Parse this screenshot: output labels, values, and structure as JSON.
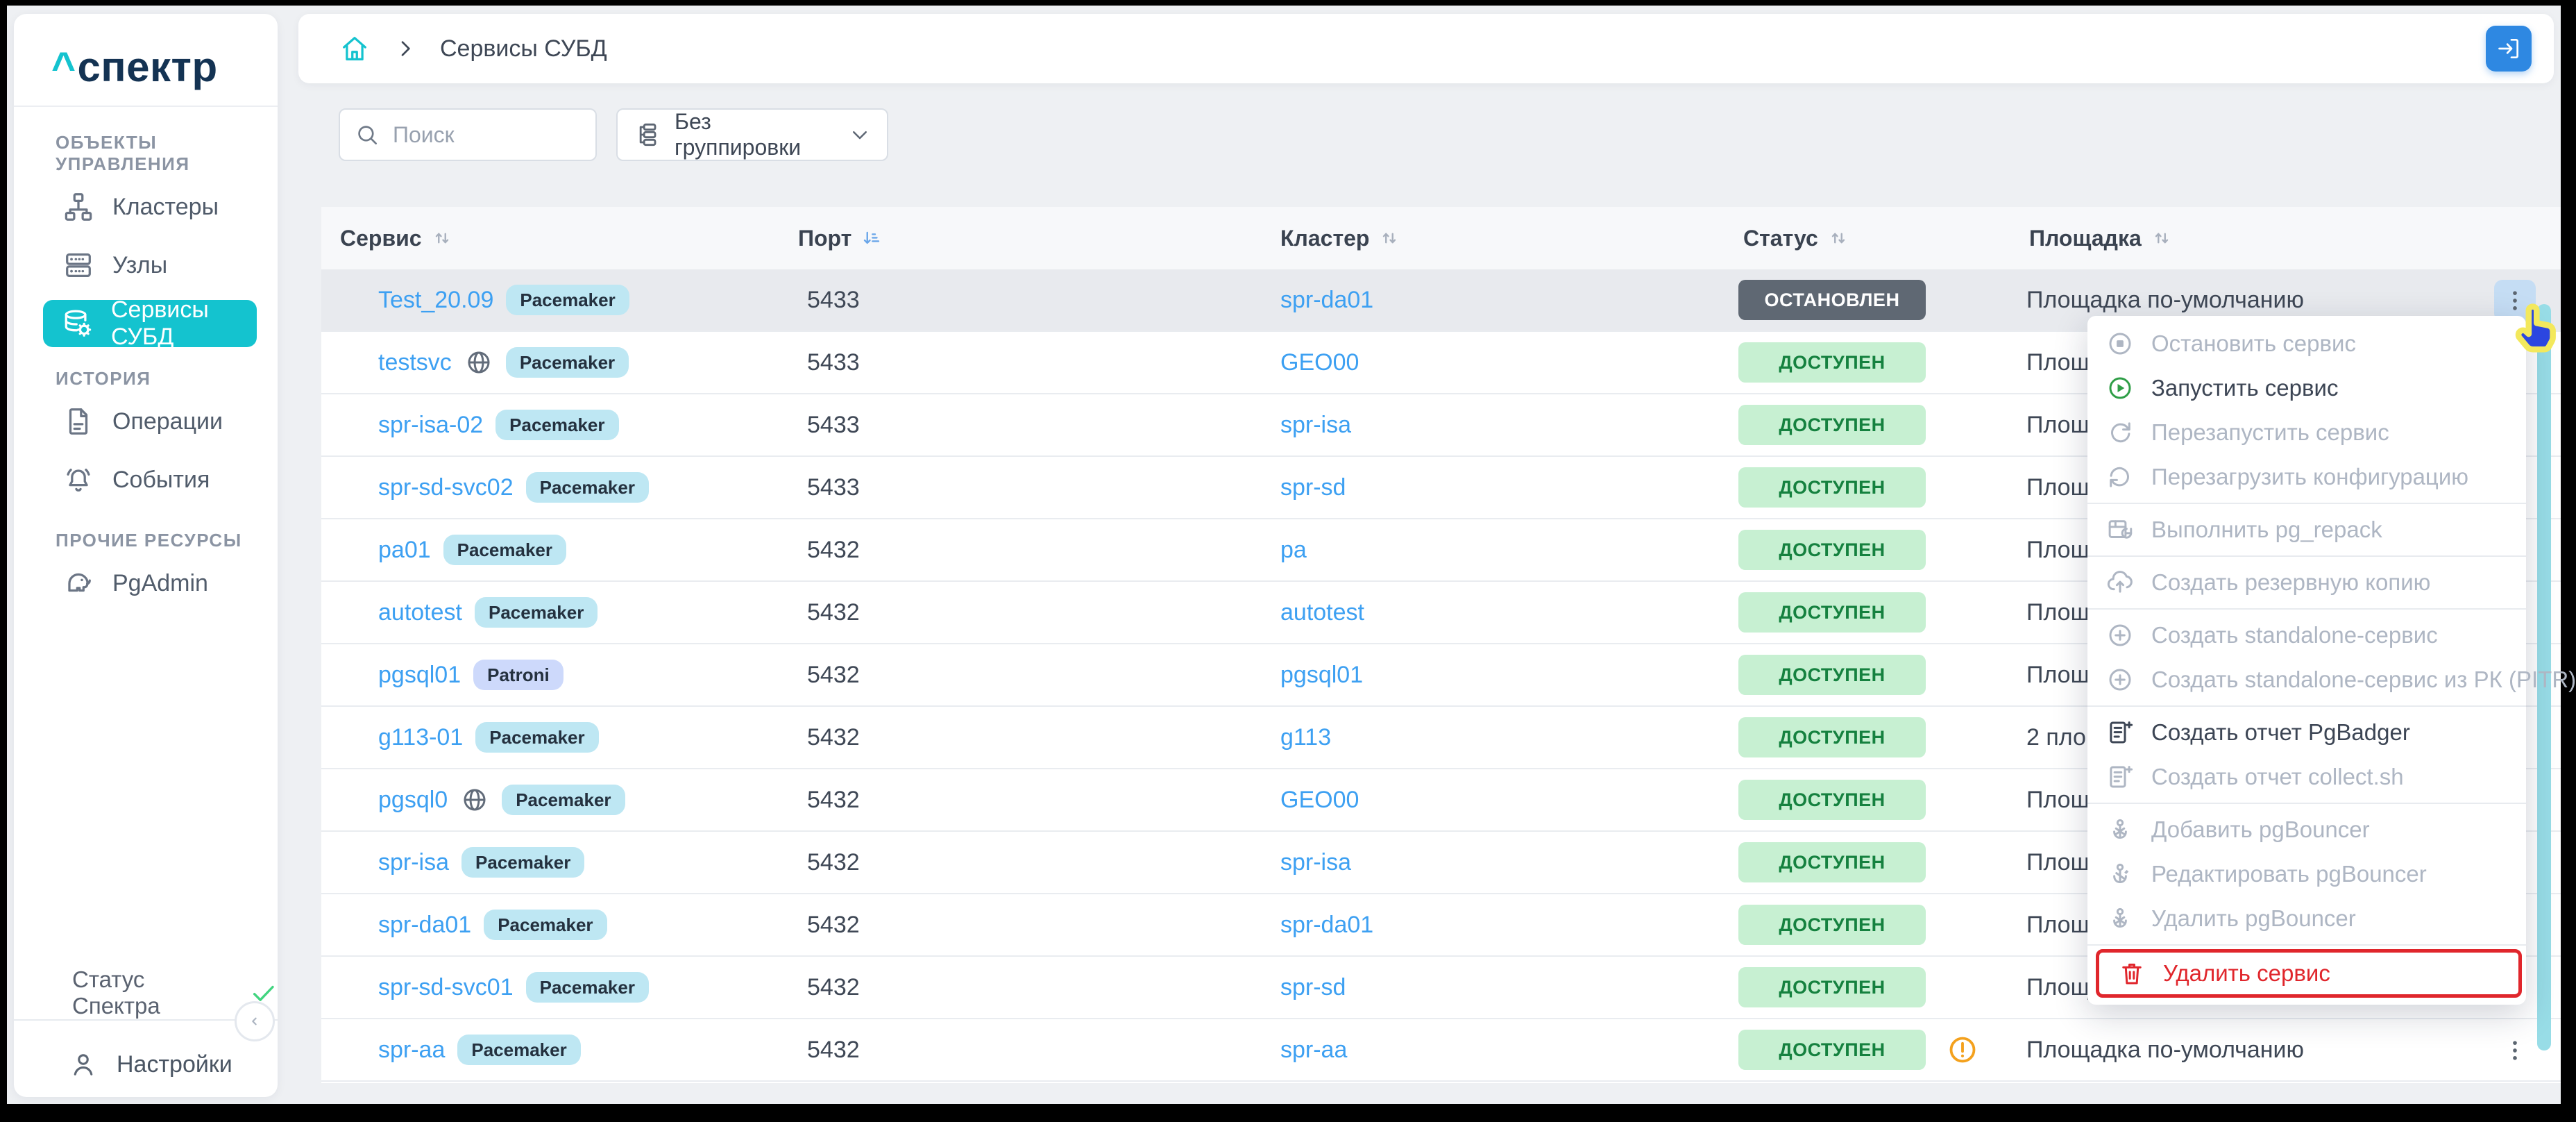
{
  "colors": {
    "accent_teal": "#14c3cf",
    "link_blue": "#3da0f2",
    "button_blue": "#2e88e2",
    "status_ok_bg": "#c7f0d2",
    "status_ok_text": "#15813f",
    "status_ok_icon": "#41d47f",
    "status_stopped_bg": "#5f6873",
    "danger_red": "#e0262c",
    "warning_orange": "#f4a11d",
    "scrollbar_teal": "#98dde7",
    "badge_pacemaker_bg": "#bee7f3",
    "badge_patroni_bg": "#cdd9fb",
    "sort_active": "#6aa6e9"
  },
  "sidebar": {
    "logo": {
      "caret": "^",
      "text": "спектр"
    },
    "sections": [
      {
        "label": "ОБЪЕКТЫ УПРАВЛЕНИЯ",
        "items": [
          {
            "label": "Кластеры",
            "icon": "clusters-icon",
            "active": false
          },
          {
            "label": "Узлы",
            "icon": "nodes-icon",
            "active": false
          },
          {
            "label": "Сервисы СУБД",
            "icon": "db-services-icon",
            "active": true
          }
        ]
      },
      {
        "label": "ИСТОРИЯ",
        "items": [
          {
            "label": "Операции",
            "icon": "operations-icon",
            "active": false
          },
          {
            "label": "События",
            "icon": "events-icon",
            "active": false
          }
        ]
      },
      {
        "label": "ПРОЧИЕ РЕСУРСЫ",
        "items": [
          {
            "label": "PgAdmin",
            "icon": "pgadmin-icon",
            "active": false
          }
        ]
      }
    ],
    "status": {
      "label": "Статус Спектра",
      "state": "ok"
    },
    "settings_label": "Настройки"
  },
  "topbar": {
    "breadcrumb_label": "Сервисы СУБД"
  },
  "controls": {
    "search_placeholder": "Поиск",
    "grouping_value": "Без группировки"
  },
  "table": {
    "columns": [
      {
        "label": "Сервис",
        "sort": "sort-icon",
        "sorted": false
      },
      {
        "label": "Порт",
        "sort": "sort-desc-icon",
        "sorted": true
      },
      {
        "label": "Кластер",
        "sort": "sort-icon",
        "sorted": false
      },
      {
        "label": "Статус",
        "sort": "sort-icon",
        "sorted": false
      },
      {
        "label": "Площадка",
        "sort": "sort-icon",
        "sorted": false
      }
    ],
    "rows": [
      {
        "service": "Test_20.09",
        "badge": "Pacemaker",
        "geo": false,
        "port": "5433",
        "cluster": "spr-da01",
        "status": "ОСТАНОВЛЕН",
        "status_variant": "stopped",
        "site": "Площадка по-умолчанию",
        "warning": false,
        "highlighted": true,
        "actions": "active"
      },
      {
        "service": "testsvc",
        "badge": "Pacemaker",
        "geo": true,
        "port": "5433",
        "cluster": "GEO00",
        "status": "ДОСТУПЕН",
        "status_variant": "ok",
        "site": "Площадка по-умолчанию",
        "warning": false,
        "highlighted": false,
        "actions": "dots"
      },
      {
        "service": "spr-isa-02",
        "badge": "Pacemaker",
        "geo": false,
        "port": "5433",
        "cluster": "spr-isa",
        "status": "ДОСТУПЕН",
        "status_variant": "ok",
        "site": "Площадка по-умолчанию",
        "warning": false,
        "highlighted": false,
        "actions": "dots"
      },
      {
        "service": "spr-sd-svc02",
        "badge": "Pacemaker",
        "geo": false,
        "port": "5433",
        "cluster": "spr-sd",
        "status": "ДОСТУПЕН",
        "status_variant": "ok",
        "site": "Площадка по-умолчанию",
        "warning": false,
        "highlighted": false,
        "actions": "dots"
      },
      {
        "service": "pa01",
        "badge": "Pacemaker",
        "geo": false,
        "port": "5432",
        "cluster": "pa",
        "status": "ДОСТУПЕН",
        "status_variant": "ok",
        "site": "Площадка по-умолчанию",
        "warning": false,
        "highlighted": false,
        "actions": "dots"
      },
      {
        "service": "autotest",
        "badge": "Pacemaker",
        "geo": false,
        "port": "5432",
        "cluster": "autotest",
        "status": "ДОСТУПЕН",
        "status_variant": "ok",
        "site": "Площадка по-умолчанию",
        "warning": false,
        "highlighted": false,
        "actions": "dots"
      },
      {
        "service": "pgsql01",
        "badge": "Patroni",
        "geo": false,
        "port": "5432",
        "cluster": "pgsql01",
        "status": "ДОСТУПЕН",
        "status_variant": "ok",
        "site": "Площадка по-умолчанию",
        "warning": false,
        "highlighted": false,
        "actions": "dots"
      },
      {
        "service": "g113-01",
        "badge": "Pacemaker",
        "geo": false,
        "port": "5432",
        "cluster": "g113",
        "status": "ДОСТУПЕН",
        "status_variant": "ok",
        "site": "2 площадки",
        "warning": false,
        "highlighted": false,
        "actions": "dots"
      },
      {
        "service": "pgsql0",
        "badge": "Pacemaker",
        "geo": true,
        "port": "5432",
        "cluster": "GEO00",
        "status": "ДОСТУПЕН",
        "status_variant": "ok",
        "site": "Площадка по-умолчанию",
        "warning": false,
        "highlighted": false,
        "actions": "dots"
      },
      {
        "service": "spr-isa",
        "badge": "Pacemaker",
        "geo": false,
        "port": "5432",
        "cluster": "spr-isa",
        "status": "ДОСТУПЕН",
        "status_variant": "ok",
        "site": "Площадка по-умолчанию",
        "warning": false,
        "highlighted": false,
        "actions": "dots"
      },
      {
        "service": "spr-da01",
        "badge": "Pacemaker",
        "geo": false,
        "port": "5432",
        "cluster": "spr-da01",
        "status": "ДОСТУПЕН",
        "status_variant": "ok",
        "site": "Площадка по-умолчанию",
        "warning": false,
        "highlighted": false,
        "actions": "dots"
      },
      {
        "service": "spr-sd-svc01",
        "badge": "Pacemaker",
        "geo": false,
        "port": "5432",
        "cluster": "spr-sd",
        "status": "ДОСТУПЕН",
        "status_variant": "ok",
        "site": "Площадка по-умолчанию",
        "warning": false,
        "highlighted": false,
        "actions": "dots"
      },
      {
        "service": "spr-aa",
        "badge": "Pacemaker",
        "geo": false,
        "port": "5432",
        "cluster": "spr-aa",
        "status": "ДОСТУПЕН",
        "status_variant": "ok",
        "site": "Площадка по-умолчанию",
        "warning": true,
        "highlighted": false,
        "actions": "dots"
      }
    ]
  },
  "context_menu": {
    "groups": [
      {
        "items": [
          {
            "label": "Остановить сервис",
            "icon": "stop-icon",
            "enabled": false,
            "danger": false,
            "highlighted": false
          },
          {
            "label": "Запустить сервис",
            "icon": "play-icon",
            "enabled": true,
            "danger": false,
            "highlighted": false,
            "icon_color": "#2f9e47"
          },
          {
            "label": "Перезапустить сервис",
            "icon": "restart-icon",
            "enabled": false,
            "danger": false,
            "highlighted": false
          },
          {
            "label": "Перезагрузить конфигурацию",
            "icon": "reload-icon",
            "enabled": false,
            "danger": false,
            "highlighted": false
          }
        ]
      },
      {
        "items": [
          {
            "label": "Выполнить pg_repack",
            "icon": "repack-icon",
            "enabled": false,
            "danger": false,
            "highlighted": false
          }
        ]
      },
      {
        "items": [
          {
            "label": "Создать резервную копию",
            "icon": "backup-icon",
            "enabled": false,
            "danger": false,
            "highlighted": false
          }
        ]
      },
      {
        "items": [
          {
            "label": "Создать standalone-сервис",
            "icon": "plus-circle-icon",
            "enabled": false,
            "danger": false,
            "highlighted": false
          },
          {
            "label": "Создать standalone-сервис из РК (PITR)",
            "icon": "plus-circle-icon",
            "enabled": false,
            "danger": false,
            "highlighted": false
          }
        ]
      },
      {
        "items": [
          {
            "label": "Создать отчет PgBadger",
            "icon": "report-icon",
            "enabled": true,
            "danger": false,
            "highlighted": false
          },
          {
            "label": "Создать отчет collect.sh",
            "icon": "report-icon",
            "enabled": false,
            "danger": false,
            "highlighted": false
          }
        ]
      },
      {
        "items": [
          {
            "label": "Добавить pgBouncer",
            "icon": "pgbouncer-add-icon",
            "enabled": false,
            "danger": false,
            "highlighted": false
          },
          {
            "label": "Редактировать pgBouncer",
            "icon": "pgbouncer-edit-icon",
            "enabled": false,
            "danger": false,
            "highlighted": false
          },
          {
            "label": "Удалить pgBouncer",
            "icon": "pgbouncer-delete-icon",
            "enabled": false,
            "danger": false,
            "highlighted": false
          }
        ]
      },
      {
        "items": [
          {
            "label": "Удалить сервис",
            "icon": "trash-icon",
            "enabled": true,
            "danger": true,
            "highlighted": true
          }
        ]
      }
    ]
  }
}
